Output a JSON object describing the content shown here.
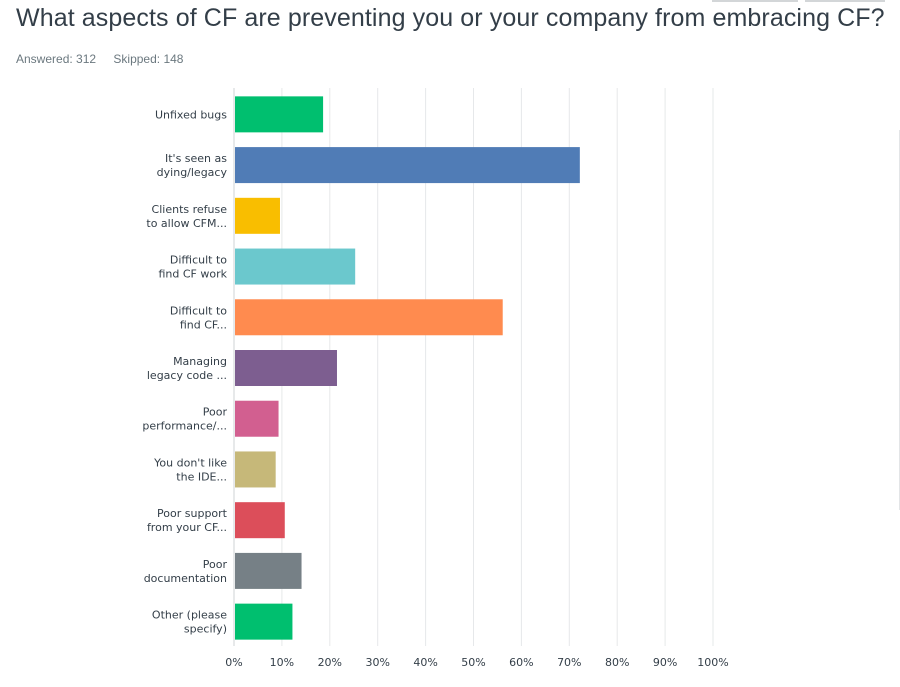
{
  "question": {
    "title": "What aspects of CF are preventing you or your company from embracing CF?",
    "answered": "Answered: 312",
    "skipped": "Skipped: 148"
  },
  "chart_data": {
    "type": "bar",
    "orientation": "horizontal",
    "title": "",
    "xlabel": "",
    "ylabel": "",
    "xlim": [
      0,
      100
    ],
    "x_ticks": [
      "0%",
      "10%",
      "20%",
      "30%",
      "40%",
      "50%",
      "60%",
      "70%",
      "80%",
      "90%",
      "100%"
    ],
    "grid": true,
    "bars": [
      {
        "label": [
          "Unfixed bugs"
        ],
        "value": 18.6,
        "color": "#00bf6f"
      },
      {
        "label": [
          "It's seen as",
          "dying/legacy"
        ],
        "value": 72.2,
        "color": "#507cb6"
      },
      {
        "label": [
          "Clients refuse",
          "to allow CFM..."
        ],
        "value": 9.6,
        "color": "#f9be00"
      },
      {
        "label": [
          "Difficult to",
          "find CF work"
        ],
        "value": 25.3,
        "color": "#6bc8cd"
      },
      {
        "label": [
          "Difficult to",
          "find CF..."
        ],
        "value": 56.1,
        "color": "#ff8b4f"
      },
      {
        "label": [
          "Managing",
          "legacy code ..."
        ],
        "value": 21.5,
        "color": "#7d5e90"
      },
      {
        "label": [
          "Poor",
          "performance/..."
        ],
        "value": 9.3,
        "color": "#d25f90"
      },
      {
        "label": [
          "You don't like",
          "the IDE..."
        ],
        "value": 8.7,
        "color": "#c6b879"
      },
      {
        "label": [
          "Poor support",
          "from your CF..."
        ],
        "value": 10.6,
        "color": "#dc4e5a"
      },
      {
        "label": [
          "Poor",
          "documentation"
        ],
        "value": 14.1,
        "color": "#768086"
      },
      {
        "label": [
          "Other (please",
          "specify)"
        ],
        "value": 12.2,
        "color": "#00bf6f"
      }
    ]
  }
}
